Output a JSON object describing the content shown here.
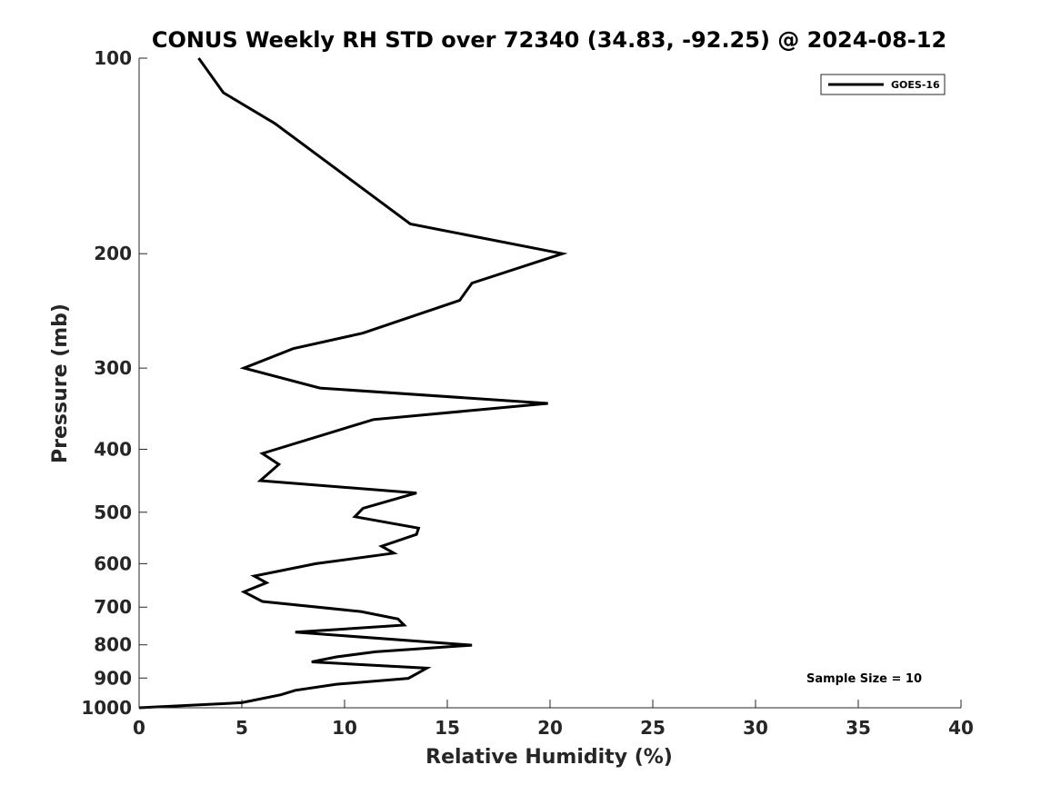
{
  "chart_data": {
    "type": "line",
    "title": "CONUS Weekly RH STD over 72340 (34.83, -92.25) @ 2024-08-12",
    "xlabel": "Relative Humidity (%)",
    "ylabel": "Pressure (mb)",
    "xlim": [
      0,
      40
    ],
    "ylim": [
      100,
      1000
    ],
    "y_scale": "log",
    "y_reversed": true,
    "x_ticks": [
      0,
      5,
      10,
      15,
      20,
      25,
      30,
      35,
      40
    ],
    "y_ticks": [
      100,
      200,
      300,
      400,
      500,
      600,
      700,
      800,
      900,
      1000
    ],
    "grid": false,
    "legend_position": "top-right",
    "annotation": "Sample Size = 10",
    "series": [
      {
        "name": "GOES-16",
        "color": "#000000",
        "x": [
          2.9,
          4.1,
          6.6,
          13.2,
          20.6,
          16.2,
          15.6,
          10.9,
          7.5,
          5.1,
          8.8,
          19.9,
          11.4,
          6.0,
          6.8,
          5.9,
          13.5,
          10.9,
          10.5,
          13.6,
          13.5,
          11.8,
          12.4,
          8.6,
          5.6,
          6.2,
          5.1,
          6.0,
          10.8,
          12.6,
          12.9,
          7.6,
          16.2,
          11.5,
          9.6,
          8.4,
          14.0,
          13.6,
          13.1,
          9.6,
          7.6,
          6.9,
          5.0,
          0.0
        ],
        "y": [
          100,
          113,
          126,
          180,
          200,
          222,
          236,
          265,
          280,
          300,
          322,
          340,
          360,
          406,
          422,
          447,
          467,
          493,
          508,
          529,
          541,
          564,
          578,
          600,
          627,
          642,
          663,
          686,
          711,
          730,
          746,
          765,
          801,
          820,
          835,
          850,
          869,
          883,
          901,
          920,
          940,
          955,
          982,
          1000
        ]
      }
    ]
  }
}
